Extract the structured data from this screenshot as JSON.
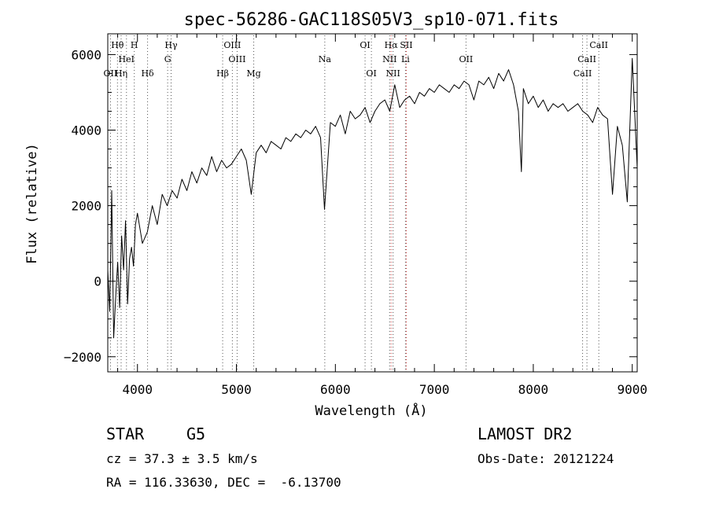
{
  "chart_data": {
    "type": "line",
    "title": "spec-56286-GAC118S05V3_sp10-071.fits",
    "xlabel": "Wavelength (Å)",
    "ylabel": "Flux (relative)",
    "xlim": [
      3700,
      9050
    ],
    "ylim": [
      -2400,
      6550
    ],
    "xticks": [
      4000,
      5000,
      6000,
      7000,
      8000,
      9000
    ],
    "yticks": [
      -2000,
      0,
      2000,
      4000,
      6000
    ],
    "grid": false,
    "series": [
      {
        "x": [
          3700,
          3720,
          3740,
          3760,
          3780,
          3800,
          3820,
          3840,
          3860,
          3880,
          3900,
          3920,
          3940,
          3960,
          3980,
          4000,
          4050,
          4100,
          4150,
          4200,
          4250,
          4300,
          4350,
          4400,
          4450,
          4500,
          4550,
          4600,
          4650,
          4700,
          4750,
          4800,
          4850,
          4900,
          4950,
          5000,
          5050,
          5100,
          5150,
          5200,
          5250,
          5300,
          5350,
          5400,
          5450,
          5500,
          5550,
          5600,
          5650,
          5700,
          5750,
          5800,
          5850,
          5890,
          5950,
          6000,
          6050,
          6100,
          6150,
          6200,
          6250,
          6300,
          6350,
          6400,
          6450,
          6500,
          6550,
          6600,
          6650,
          6700,
          6750,
          6800,
          6850,
          6900,
          6950,
          7000,
          7050,
          7100,
          7150,
          7200,
          7250,
          7300,
          7350,
          7400,
          7450,
          7500,
          7550,
          7600,
          7650,
          7700,
          7750,
          7800,
          7850,
          7880,
          7900,
          7950,
          8000,
          8050,
          8100,
          8150,
          8200,
          8250,
          8300,
          8350,
          8400,
          8450,
          8500,
          8550,
          8600,
          8650,
          8700,
          8750,
          8800,
          8850,
          8900,
          8950,
          9000,
          9050
        ],
        "y": [
          300,
          -800,
          2400,
          -1500,
          -400,
          500,
          -700,
          1200,
          300,
          1600,
          -600,
          600,
          900,
          400,
          1500,
          1800,
          1000,
          1300,
          2000,
          1500,
          2300,
          2000,
          2400,
          2200,
          2700,
          2400,
          2900,
          2600,
          3000,
          2800,
          3300,
          2900,
          3200,
          3000,
          3100,
          3300,
          3500,
          3200,
          2300,
          3400,
          3600,
          3400,
          3700,
          3600,
          3500,
          3800,
          3700,
          3900,
          3800,
          4000,
          3900,
          4100,
          3800,
          1900,
          4200,
          4100,
          4400,
          3900,
          4500,
          4300,
          4400,
          4600,
          4200,
          4500,
          4700,
          4800,
          4500,
          5200,
          4600,
          4800,
          4900,
          4700,
          5000,
          4900,
          5100,
          5000,
          5200,
          5100,
          5000,
          5200,
          5100,
          5300,
          5200,
          4800,
          5300,
          5200,
          5400,
          5100,
          5500,
          5300,
          5600,
          5200,
          4500,
          2900,
          5100,
          4700,
          4900,
          4600,
          4800,
          4500,
          4700,
          4600,
          4700,
          4500,
          4600,
          4700,
          4500,
          4400,
          4200,
          4600,
          4400,
          4300,
          2300,
          4100,
          3600,
          2100,
          5900,
          3000
        ]
      }
    ],
    "spectral_lines": [
      {
        "label": "Hθ",
        "x": 3798,
        "row": 1
      },
      {
        "label": "H",
        "x": 3968,
        "row": 1
      },
      {
        "label": "Hγ",
        "x": 4340,
        "row": 1
      },
      {
        "label": "OIII",
        "x": 4959,
        "row": 1
      },
      {
        "label": "OI",
        "x": 6300,
        "row": 1
      },
      {
        "label": "Hα",
        "x": 6563,
        "row": 1
      },
      {
        "label": "SII",
        "x": 6717,
        "row": 1
      },
      {
        "label": "CaII",
        "x": 8662,
        "row": 1
      },
      {
        "label": "HeI",
        "x": 3889,
        "row": 2
      },
      {
        "label": "G",
        "x": 4305,
        "row": 2
      },
      {
        "label": "OIII",
        "x": 5007,
        "row": 2
      },
      {
        "label": "Na",
        "x": 5893,
        "row": 2
      },
      {
        "label": "NII",
        "x": 6548,
        "row": 2
      },
      {
        "label": "Li",
        "x": 6708,
        "row": 2
      },
      {
        "label": "OII",
        "x": 7320,
        "row": 2
      },
      {
        "label": "CaII",
        "x": 8542,
        "row": 2
      },
      {
        "label": "OII",
        "x": 3727,
        "row": 3
      },
      {
        "label": "Hη",
        "x": 3835,
        "row": 3
      },
      {
        "label": "Hδ",
        "x": 4102,
        "row": 3
      },
      {
        "label": "Hβ",
        "x": 4861,
        "row": 3
      },
      {
        "label": "Mg",
        "x": 5175,
        "row": 3
      },
      {
        "label": "OI",
        "x": 6364,
        "row": 3
      },
      {
        "label": "NII",
        "x": 6583,
        "row": 3
      },
      {
        "label": "CaII",
        "x": 8498,
        "row": 3
      }
    ]
  },
  "info": {
    "object_class": "STAR",
    "subclass": "G5",
    "survey": "LAMOST DR2",
    "redshift": "cz = 37.3 ± 3.5 km/s",
    "obs_date": "Obs-Date: 20121224",
    "coords": "RA = 116.33630, DEC =  -6.13700"
  }
}
